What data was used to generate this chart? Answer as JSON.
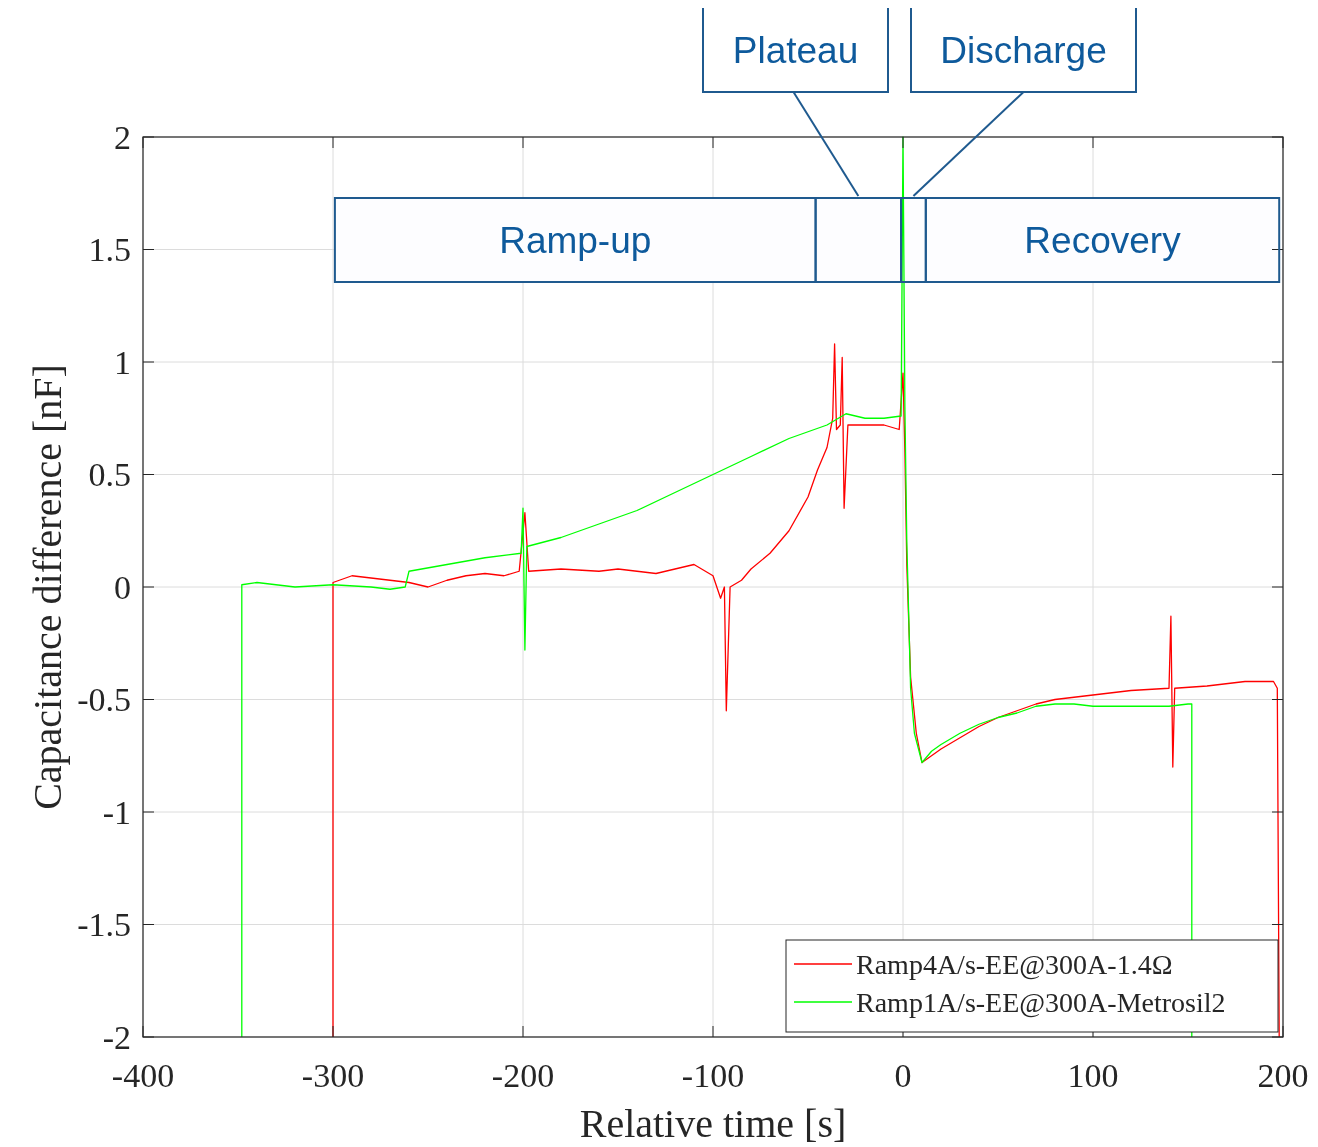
{
  "chart_data": {
    "type": "line",
    "xlabel": "Relative time [s]",
    "ylabel": "Capacitance difference [nF]",
    "xlim": [
      -400,
      200
    ],
    "xticks": [
      -400,
      -300,
      -200,
      -100,
      0,
      100,
      200
    ],
    "ylim": [
      -2,
      2
    ],
    "yticks": [
      -2,
      -1.5,
      -1,
      -0.5,
      0,
      0.5,
      1,
      1.5,
      2
    ],
    "grid": true,
    "legend": "bottom right",
    "line_style": "solid",
    "marker": "none",
    "series": [
      {
        "name": "Ramp4A/s-EE@300A-1.4Ω",
        "color": "#ff0000",
        "x": [
          -300,
          -300,
          -290,
          -270,
          -260,
          -250,
          -240,
          -230,
          -220,
          -210,
          -202,
          -199,
          -197,
          -180,
          -160,
          -150,
          -140,
          -130,
          -120,
          -110,
          -100,
          -96,
          -94,
          -93,
          -91,
          -85,
          -80,
          -70,
          -60,
          -50,
          -45,
          -40,
          -37,
          -36,
          -35,
          -33,
          -32,
          -31,
          -29,
          -20,
          -10,
          -2,
          0,
          1,
          2,
          4,
          7,
          10,
          15,
          20,
          30,
          40,
          50,
          60,
          70,
          80,
          90,
          100,
          110,
          120,
          140,
          141,
          142,
          143,
          160,
          180,
          195,
          197,
          198
        ],
        "values": [
          -2,
          0.02,
          0.05,
          0.03,
          0.02,
          0,
          0.03,
          0.05,
          0.06,
          0.05,
          0.07,
          0.33,
          0.07,
          0.08,
          0.07,
          0.08,
          0.07,
          0.06,
          0.08,
          0.1,
          0.05,
          -0.05,
          0,
          -0.55,
          0,
          0.03,
          0.08,
          0.15,
          0.25,
          0.4,
          0.52,
          0.62,
          0.75,
          1.08,
          0.7,
          0.72,
          1.02,
          0.35,
          0.72,
          0.72,
          0.72,
          0.7,
          0.95,
          0.6,
          0.1,
          -0.4,
          -0.65,
          -0.78,
          -0.75,
          -0.72,
          -0.67,
          -0.62,
          -0.58,
          -0.55,
          -0.52,
          -0.5,
          -0.49,
          -0.48,
          -0.47,
          -0.46,
          -0.45,
          -0.13,
          -0.8,
          -0.45,
          -0.44,
          -0.42,
          -0.42,
          -0.45,
          -2
        ]
      },
      {
        "name": "Ramp1A/s-EE@300A-Metrosil2",
        "color": "#00ff00",
        "x": [
          -348,
          -348,
          -340,
          -320,
          -300,
          -280,
          -270,
          -262,
          -260,
          -240,
          -220,
          -201,
          -200,
          -199,
          -198,
          -180,
          -160,
          -140,
          -120,
          -100,
          -80,
          -60,
          -40,
          -30,
          -20,
          -10,
          -1,
          0,
          1,
          2,
          4,
          6,
          10,
          15,
          20,
          30,
          40,
          50,
          60,
          70,
          80,
          90,
          100,
          120,
          140,
          150,
          152,
          152
        ],
        "values": [
          -2,
          0.01,
          0.02,
          0,
          0.01,
          0,
          -0.01,
          0,
          0.07,
          0.1,
          0.13,
          0.15,
          0.35,
          -0.28,
          0.18,
          0.22,
          0.28,
          0.34,
          0.42,
          0.5,
          0.58,
          0.66,
          0.72,
          0.77,
          0.75,
          0.75,
          0.76,
          2,
          0.8,
          0.2,
          -0.45,
          -0.65,
          -0.78,
          -0.73,
          -0.7,
          -0.65,
          -0.61,
          -0.58,
          -0.56,
          -0.53,
          -0.52,
          -0.52,
          -0.53,
          -0.53,
          -0.53,
          -0.52,
          -0.52,
          -2
        ]
      }
    ],
    "bands": [
      {
        "axis": "x",
        "from": -299,
        "to": -46,
        "label": "Ramp-up"
      },
      {
        "axis": "x",
        "from": -46,
        "to": -1,
        "label": "Plateau"
      },
      {
        "axis": "x",
        "from": -1,
        "to": 12,
        "label": "Discharge"
      },
      {
        "axis": "x",
        "from": 12,
        "to": 198,
        "label": "Recovery"
      }
    ]
  }
}
